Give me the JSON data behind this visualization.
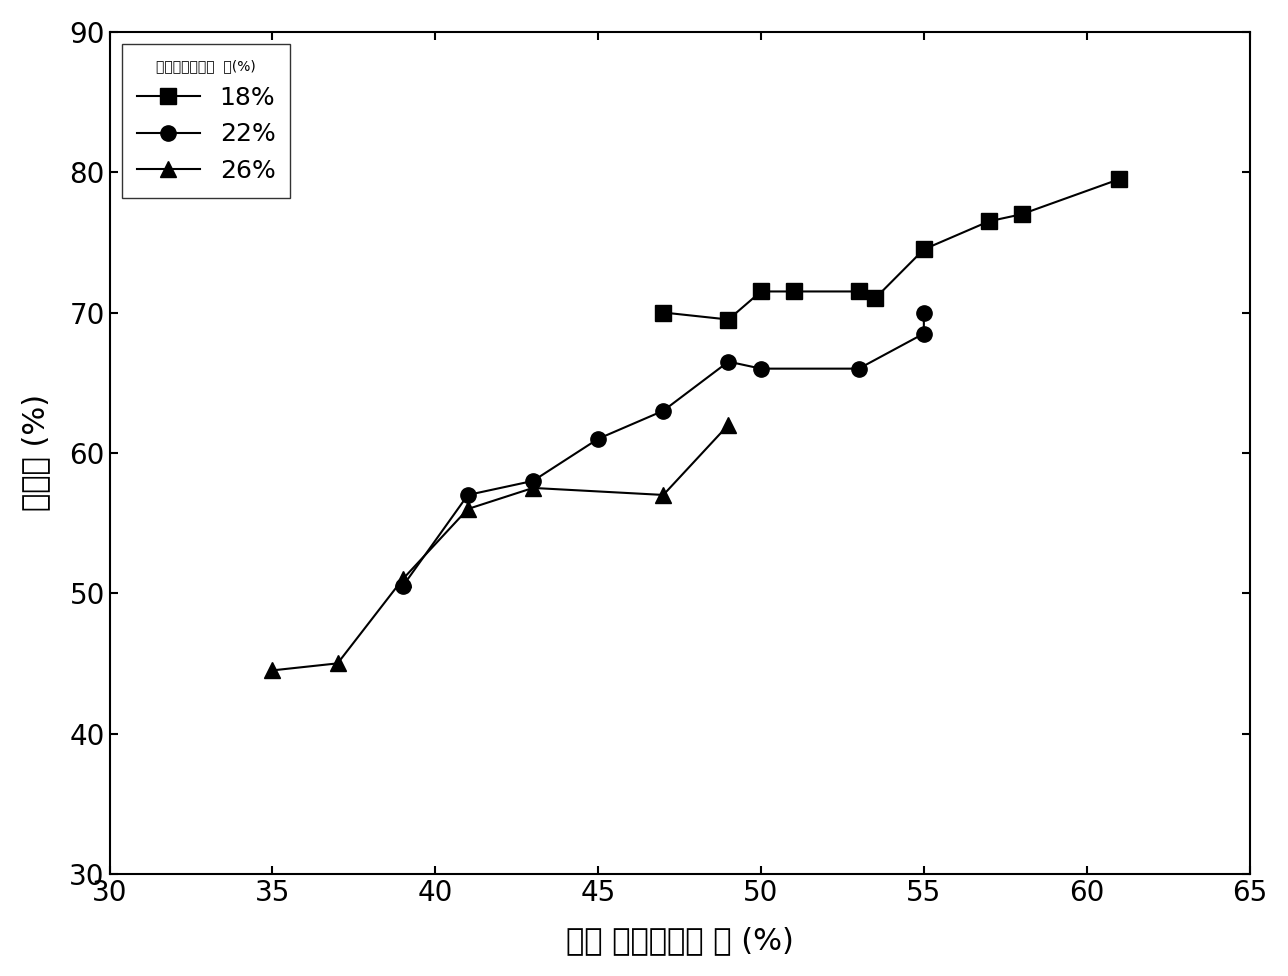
{
  "series_18": {
    "x": [
      47,
      49,
      50,
      51,
      53,
      53.5,
      55,
      57,
      58,
      61
    ],
    "y": [
      70,
      69.5,
      71.5,
      71.5,
      71.5,
      71,
      74.5,
      76.5,
      77,
      79.5
    ],
    "label": "18%",
    "marker": "s"
  },
  "series_22": {
    "x": [
      39,
      41,
      43,
      45,
      47,
      49,
      50,
      53,
      55,
      55
    ],
    "y": [
      50.5,
      57,
      58,
      61,
      63,
      66.5,
      66,
      66,
      68.5,
      70
    ],
    "label": "22%",
    "marker": "o"
  },
  "series_26": {
    "x": [
      35,
      37,
      39,
      41,
      43,
      47,
      49
    ],
    "y": [
      44.5,
      45,
      51,
      56,
      57.5,
      57,
      62
    ],
    "label": "26%",
    "marker": "^"
  },
  "xlabel": "正丙 醇的质量分 数 (%)",
  "ylabel": "回收率 (%)",
  "legend_title": "葡萄糖的质量分  数(%)",
  "xlim": [
    30,
    65
  ],
  "ylim": [
    30,
    90
  ],
  "xticks": [
    30,
    35,
    40,
    45,
    50,
    55,
    60,
    65
  ],
  "yticks": [
    30,
    40,
    50,
    60,
    70,
    80,
    90
  ],
  "marker_size": 11,
  "linewidth": 1.5,
  "font_size_ticks": 20,
  "font_size_labels": 22,
  "font_size_legend": 18,
  "font_size_legend_title": 18,
  "color": "#000000"
}
